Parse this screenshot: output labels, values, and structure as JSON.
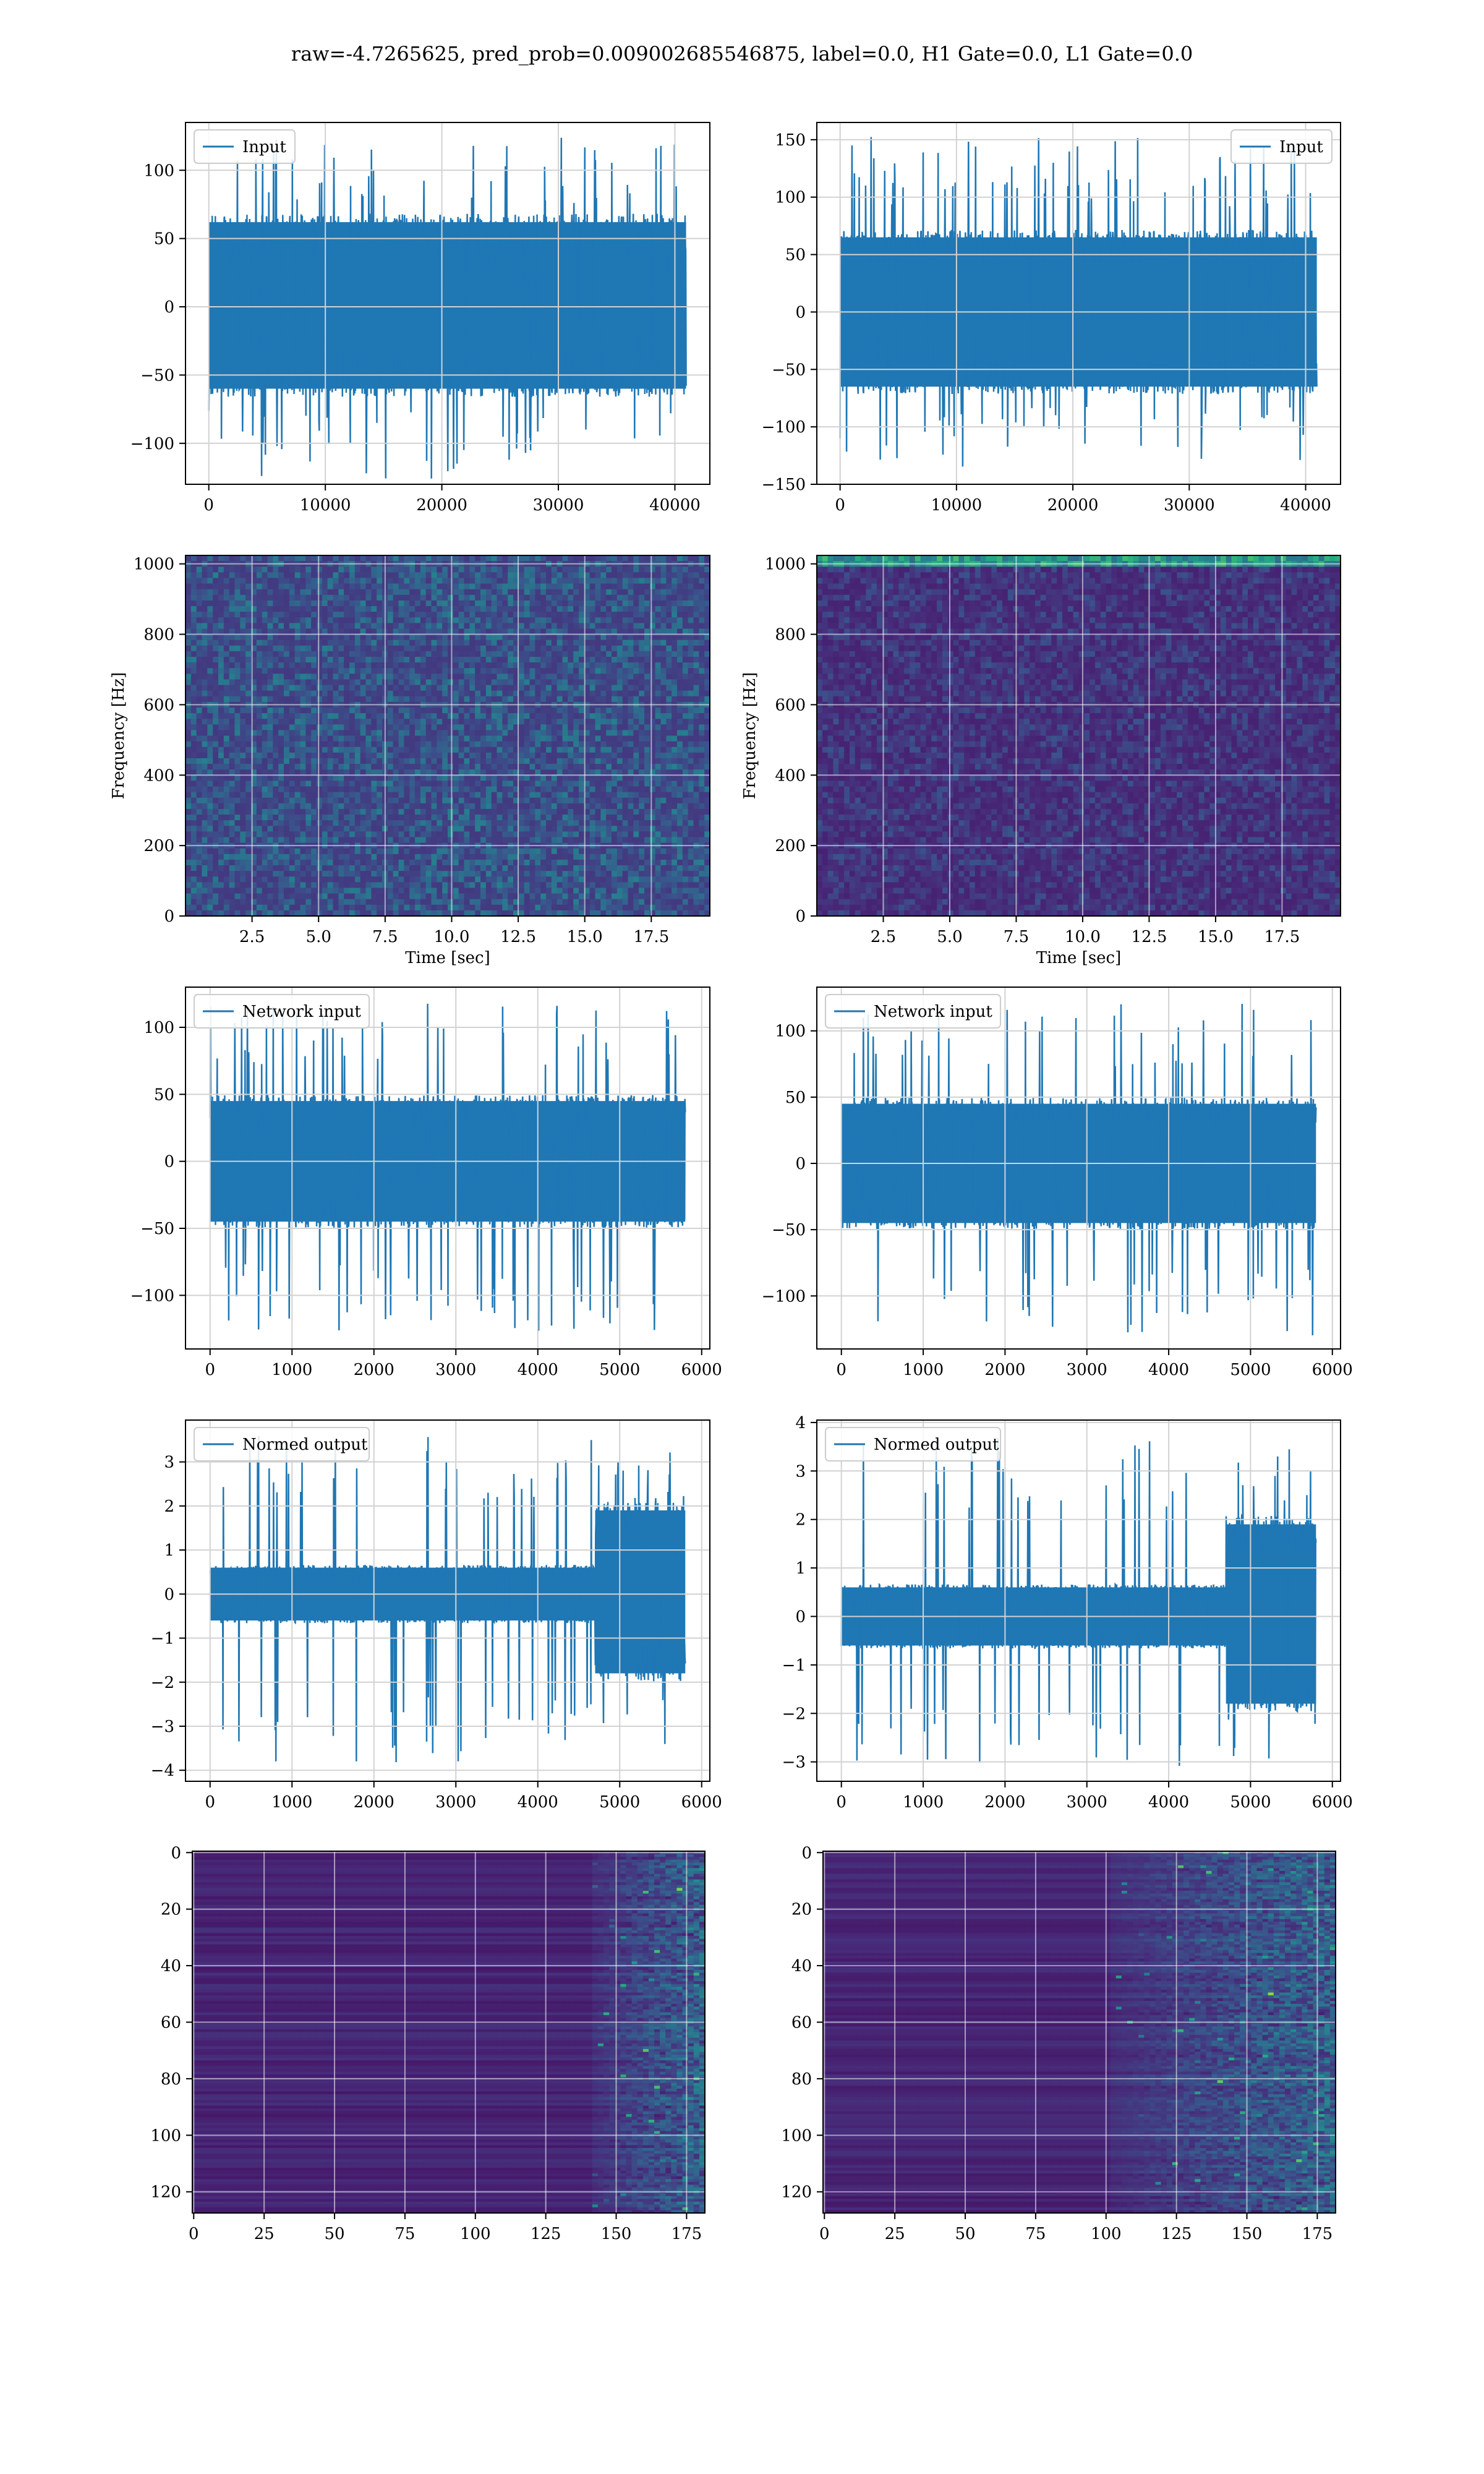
{
  "figure": {
    "suptitle": "raw=-4.7265625, pred_prob=0.009002685546875, label=0.0, H1 Gate=0.0, L1 Gate=0.0"
  },
  "chart_data": [
    {
      "type": "line",
      "panel": "row1-left",
      "legend": "Input",
      "legend_loc": "upper left",
      "grid": true,
      "xlim": [
        -2000,
        43000
      ],
      "ylim": [
        -130,
        135
      ],
      "xticks": [
        0,
        10000,
        20000,
        30000,
        40000
      ],
      "yticks": [
        -100,
        -50,
        0,
        50,
        100
      ],
      "x_range": [
        0,
        40960
      ],
      "y_envelope": [
        -126,
        126
      ],
      "y_bulk": [
        -60,
        62
      ],
      "color": "#1f77b4"
    },
    {
      "type": "line",
      "panel": "row1-right",
      "legend": "Input",
      "legend_loc": "upper right",
      "grid": true,
      "xlim": [
        -2000,
        43000
      ],
      "ylim": [
        -150,
        165
      ],
      "xticks": [
        0,
        10000,
        20000,
        30000,
        40000
      ],
      "yticks": [
        -150,
        -100,
        -50,
        0,
        50,
        100,
        150
      ],
      "x_range": [
        0,
        40960
      ],
      "y_envelope": [
        -135,
        153
      ],
      "y_bulk": [
        -65,
        65
      ],
      "color": "#1f77b4"
    },
    {
      "type": "heatmap",
      "panel": "row2-left",
      "xlabel": "Time [sec]",
      "ylabel": "Frequency [Hz]",
      "grid": true,
      "xlim": [
        0,
        19.7
      ],
      "ylim": [
        0,
        1024
      ],
      "xticks": [
        2.5,
        5.0,
        7.5,
        10.0,
        12.5,
        15.0,
        17.5
      ],
      "xticklabels": [
        "2.5",
        "5.0",
        "7.5",
        "10.0",
        "12.5",
        "15.0",
        "17.5"
      ],
      "yticks": [
        0,
        200,
        400,
        600,
        800,
        1000
      ],
      "colormap": "viridis",
      "intensity": "moderate"
    },
    {
      "type": "heatmap",
      "panel": "row2-right",
      "xlabel": "Time [sec]",
      "ylabel": "Frequency [Hz]",
      "grid": true,
      "xlim": [
        0,
        19.7
      ],
      "ylim": [
        0,
        1024
      ],
      "xticks": [
        2.5,
        5.0,
        7.5,
        10.0,
        12.5,
        15.0,
        17.5
      ],
      "xticklabels": [
        "2.5",
        "5.0",
        "7.5",
        "10.0",
        "12.5",
        "15.0",
        "17.5"
      ],
      "yticks": [
        0,
        200,
        400,
        600,
        800,
        1000
      ],
      "colormap": "viridis",
      "intensity": "low",
      "bright_band_hz": [
        1000,
        1024
      ]
    },
    {
      "type": "line",
      "panel": "row3-left",
      "legend": "Network input",
      "legend_loc": "upper left",
      "grid": true,
      "xlim": [
        -300,
        6100
      ],
      "ylim": [
        -140,
        130
      ],
      "xticks": [
        0,
        1000,
        2000,
        3000,
        4000,
        5000,
        6000
      ],
      "yticks": [
        -100,
        -50,
        0,
        50,
        100
      ],
      "x_range": [
        0,
        5800
      ],
      "y_envelope": [
        -127,
        120
      ],
      "y_bulk": [
        -45,
        45
      ],
      "color": "#1f77b4"
    },
    {
      "type": "line",
      "panel": "row3-right",
      "legend": "Network input",
      "legend_loc": "upper left",
      "grid": true,
      "xlim": [
        -300,
        6100
      ],
      "ylim": [
        -140,
        133
      ],
      "xticks": [
        0,
        1000,
        2000,
        3000,
        4000,
        5000,
        6000
      ],
      "yticks": [
        -100,
        -50,
        0,
        50,
        100
      ],
      "x_range": [
        0,
        5800
      ],
      "y_envelope": [
        -130,
        121
      ],
      "y_bulk": [
        -45,
        45
      ],
      "color": "#1f77b4"
    },
    {
      "type": "line",
      "panel": "row4-left",
      "legend": "Normed output",
      "legend_loc": "upper left",
      "grid": true,
      "xlim": [
        -300,
        6100
      ],
      "ylim": [
        -4.25,
        3.95
      ],
      "xticks": [
        0,
        1000,
        2000,
        3000,
        4000,
        5000,
        6000
      ],
      "yticks": [
        -4,
        -3,
        -2,
        -1,
        0,
        1,
        2,
        3
      ],
      "x_range": [
        0,
        5800
      ],
      "burst_start_x": 4700,
      "y_bulk_before": [
        -0.6,
        0.6
      ],
      "y_bulk_after": [
        -1.8,
        1.9
      ],
      "y_envelope": [
        -3.9,
        3.6
      ],
      "color": "#1f77b4"
    },
    {
      "type": "line",
      "panel": "row4-right",
      "legend": "Normed output",
      "legend_loc": "upper left",
      "grid": true,
      "xlim": [
        -300,
        6100
      ],
      "ylim": [
        -3.4,
        4.05
      ],
      "xticks": [
        0,
        1000,
        2000,
        3000,
        4000,
        5000,
        6000
      ],
      "yticks": [
        -3,
        -2,
        -1,
        0,
        1,
        2,
        3,
        4
      ],
      "x_range": [
        0,
        5800
      ],
      "burst_start_x": 4700,
      "y_bulk_before": [
        -0.6,
        0.6
      ],
      "y_bulk_after": [
        -1.8,
        1.9
      ],
      "y_envelope": [
        -3.1,
        3.7
      ],
      "color": "#1f77b4"
    },
    {
      "type": "heatmap",
      "panel": "row5-left",
      "grid": true,
      "xlim": [
        -0.5,
        181.5
      ],
      "ylim": [
        127.5,
        -0.5
      ],
      "xticks": [
        0,
        25,
        50,
        75,
        100,
        125,
        150,
        175
      ],
      "yticks": [
        0,
        20,
        40,
        60,
        80,
        100,
        120
      ],
      "colormap": "viridis",
      "activity_onset_x": 140
    },
    {
      "type": "heatmap",
      "panel": "row5-right",
      "grid": true,
      "xlim": [
        -0.5,
        181.5
      ],
      "ylim": [
        127.5,
        -0.5
      ],
      "xticks": [
        0,
        25,
        50,
        75,
        100,
        125,
        150,
        175
      ],
      "yticks": [
        0,
        20,
        40,
        60,
        80,
        100,
        120
      ],
      "colormap": "viridis",
      "activity_onset_x": 100
    }
  ]
}
